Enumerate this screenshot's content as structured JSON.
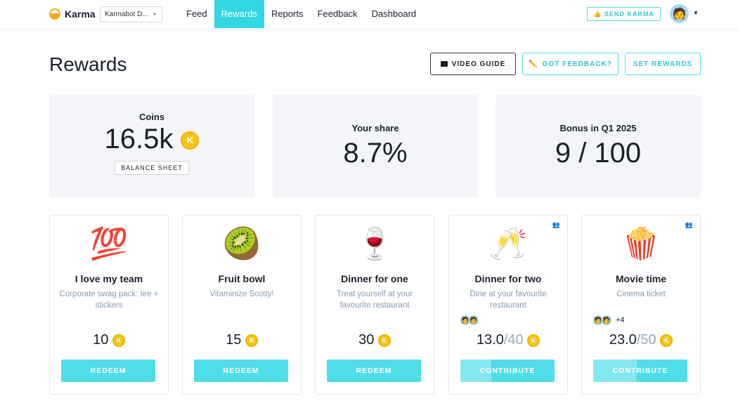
{
  "nav": {
    "brand": "Karma",
    "workspace": "Karmabot D...",
    "tabs": [
      "Feed",
      "Rewards",
      "Reports",
      "Feedback",
      "Dashboard"
    ],
    "active_tab": "Rewards",
    "send_karma": "SEND KARMA",
    "send_icon": "👍",
    "avatar_icon": "🧑"
  },
  "page": {
    "title": "Rewards",
    "buttons": {
      "video_guide": "VIDEO GUIDE",
      "feedback": "GOT FEEDBACK?",
      "feedback_icon": "✏️",
      "set_rewards": "SET REWARDS"
    }
  },
  "stats": {
    "coins": {
      "label": "Coins",
      "value": "16.5k",
      "balance_sheet": "BALANCE SHEET"
    },
    "share": {
      "label": "Your share",
      "value": "8.7%"
    },
    "bonus": {
      "label": "Bonus in Q1 2025",
      "value": "9 / 100"
    }
  },
  "coin_symbol": "K",
  "rewards": [
    {
      "emoji": "💯",
      "name": "I love my team",
      "desc": "Corporate swag pack: tee + stickers",
      "price": "10",
      "button": "REDEEM"
    },
    {
      "emoji": "🥝",
      "name": "Fruit bowl",
      "desc": "Vitaminize Scotty!",
      "price": "15",
      "button": "REDEEM"
    },
    {
      "emoji": "🍷",
      "name": "Dinner for one",
      "desc": "Treat yourself at your favourite restaurant",
      "price": "30",
      "button": "REDEEM"
    },
    {
      "emoji": "🥂",
      "name": "Dinner for two",
      "desc": "Dine at your favourite restaurant",
      "raised": "13.0",
      "total": "/40",
      "progress": 0.325,
      "extra": "",
      "button": "CONTRIBUTE",
      "group_icon": "👥"
    },
    {
      "emoji": "🍿",
      "name": "Movie time",
      "desc": "Cinema ticket",
      "raised": "23.0",
      "total": "/50",
      "progress": 0.46,
      "extra": "+4",
      "button": "CONTRIBUTE",
      "group_icon": "👥"
    }
  ]
}
